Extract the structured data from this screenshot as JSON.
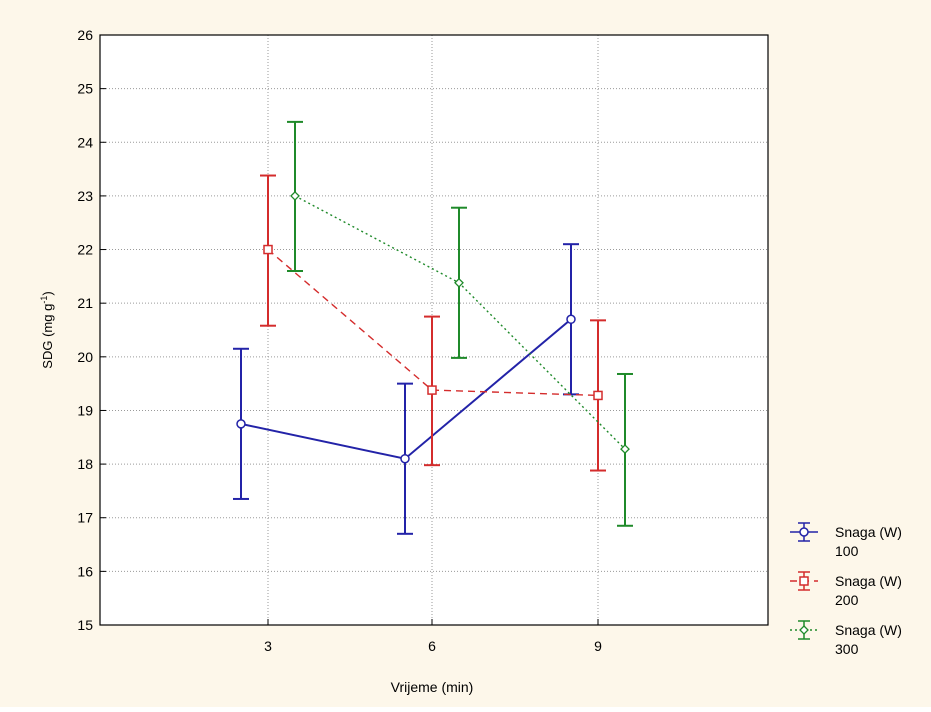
{
  "chart_data": {
    "type": "line",
    "xlabel": "Vrijeme (min)",
    "ylabel_main": "SDG (mg g",
    "ylabel_sup": "-1",
    "ylabel_end": ")",
    "ylim": [
      15,
      26
    ],
    "yticks": [
      "15",
      "16",
      "17",
      "18",
      "19",
      "20",
      "21",
      "22",
      "23",
      "24",
      "25",
      "26"
    ],
    "categories": [
      "3",
      "6",
      "9"
    ],
    "grid": true,
    "legend_position": "right",
    "error_bars": true,
    "series": [
      {
        "legend_line1": "Snaga (W)",
        "legend_line2": "100",
        "color": "#2323a8",
        "line_style": "solid",
        "marker": "circle",
        "values": [
          18.75,
          18.1,
          20.7
        ],
        "lower": [
          17.35,
          16.7,
          19.3
        ],
        "upper": [
          20.15,
          19.5,
          22.1
        ]
      },
      {
        "legend_line1": "Snaga (W)",
        "legend_line2": "200",
        "color": "#d42c2c",
        "line_style": "dashed",
        "marker": "square",
        "values": [
          22.0,
          19.38,
          19.28
        ],
        "lower": [
          20.58,
          17.98,
          17.88
        ],
        "upper": [
          23.38,
          20.75,
          20.68
        ]
      },
      {
        "legend_line1": "Snaga (W)",
        "legend_line2": "300",
        "color": "#1f8a2a",
        "line_style": "dotted",
        "marker": "diamond",
        "values": [
          23.0,
          21.38,
          18.28
        ],
        "lower": [
          21.6,
          19.98,
          16.85
        ],
        "upper": [
          24.38,
          22.78,
          19.68
        ]
      }
    ]
  }
}
